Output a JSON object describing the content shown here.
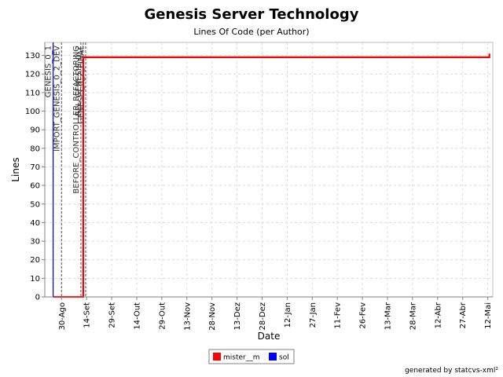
{
  "chart_data": {
    "type": "line",
    "title": "Genesis Server Technology",
    "subtitle": "Lines Of Code (per Author)",
    "xlabel": "Date",
    "ylabel": "Lines",
    "x_ticks": [
      "30-Ago",
      "14-Set",
      "29-Set",
      "14-Out",
      "29-Out",
      "13-Nov",
      "28-Nov",
      "13-Dez",
      "28-Dez",
      "12-Jan",
      "27-Jan",
      "11-Fev",
      "26-Fev",
      "13-Mar",
      "28-Mar",
      "12-Abr",
      "27-Abr",
      "12-Mai"
    ],
    "y_ticks": [
      0,
      10,
      20,
      30,
      40,
      50,
      60,
      70,
      80,
      90,
      100,
      110,
      120,
      130
    ],
    "ylim": [
      0,
      137
    ],
    "grid": true,
    "legend_position": "bottom",
    "colors": {
      "mister__m": "#ff0000",
      "sol": "#0000ff"
    },
    "series": [
      {
        "name": "mister__m",
        "color": "#ff0000",
        "x": [
          "2025-08-25",
          "2025-09-12",
          "2025-09-12",
          "2026-05-13",
          "2026-05-13"
        ],
        "y": [
          0,
          0,
          129,
          129,
          131
        ]
      },
      {
        "name": "sol",
        "color": "#0000ff",
        "x": [
          "2025-08-25",
          "2025-08-25"
        ],
        "y": [
          0,
          137
        ]
      }
    ],
    "markers": [
      {
        "label": "GENESIS_0_1",
        "date": "2025-08-25",
        "style": "dashed"
      },
      {
        "label": "IMPORT_GENESIS_0_2_DEV",
        "date": "2025-08-30",
        "style": "dashed"
      },
      {
        "label": "BEFORE_CONTROLLER_REFACTORING",
        "date": "2025-09-12",
        "style": "dashed"
      },
      {
        "label": "REL_GENESIS_0_2",
        "date": "2025-09-12",
        "style": "dashed"
      },
      {
        "label": "GENESIS_0_2_FINAL",
        "date": "2025-09-12",
        "style": "dashed"
      }
    ],
    "footer": "generated by statcvs-xml²"
  }
}
